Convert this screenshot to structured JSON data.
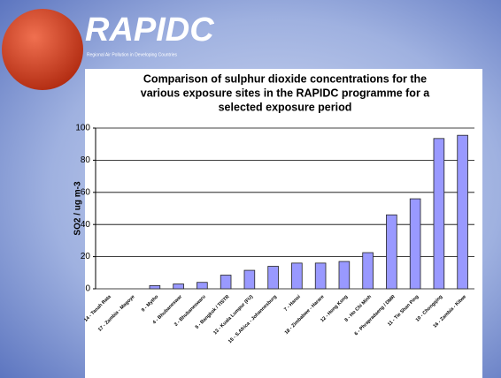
{
  "logo": {
    "name": "RAPIDC",
    "tagline": "Regional Air Pollution in Developing Countries"
  },
  "chart_data": {
    "type": "bar",
    "title": [
      "Comparison of sulphur dioxide concentrations for the",
      "various exposure sites in the RAPIDC programme for a",
      "selected exposure period"
    ],
    "y_label": "SO2 / ug m-3",
    "categories": [
      "14 - Tanah Rata",
      "17 - Zambia - Magoye",
      "9 - Mytho",
      "4 - Bhubaneswar",
      "3 - Bhubaneswaru",
      "5 - Bangkok / TISTR",
      "13 - Kuala Lumpur (FU)",
      "15 - S.Africa - Johannesburg",
      "7 - Hanoi",
      "18 - Zimbabwe - Harare",
      "12 - Hong Kong",
      "8 - Ho Chi Minh",
      "6 - Phrapradaeng / DMR",
      "11 - Tie Shan Ping",
      "10 - Chongqing",
      "16 - Zambia - Kitwe"
    ],
    "values": [
      0,
      0,
      2,
      3,
      4,
      8.5,
      11.5,
      14,
      16,
      16,
      17,
      22.5,
      46,
      56,
      93.5,
      95.5
    ],
    "color": "#9999ff",
    "ylim": [
      0,
      100
    ],
    "yticks": [
      0,
      20,
      40,
      60,
      80,
      100
    ],
    "grid": true
  }
}
